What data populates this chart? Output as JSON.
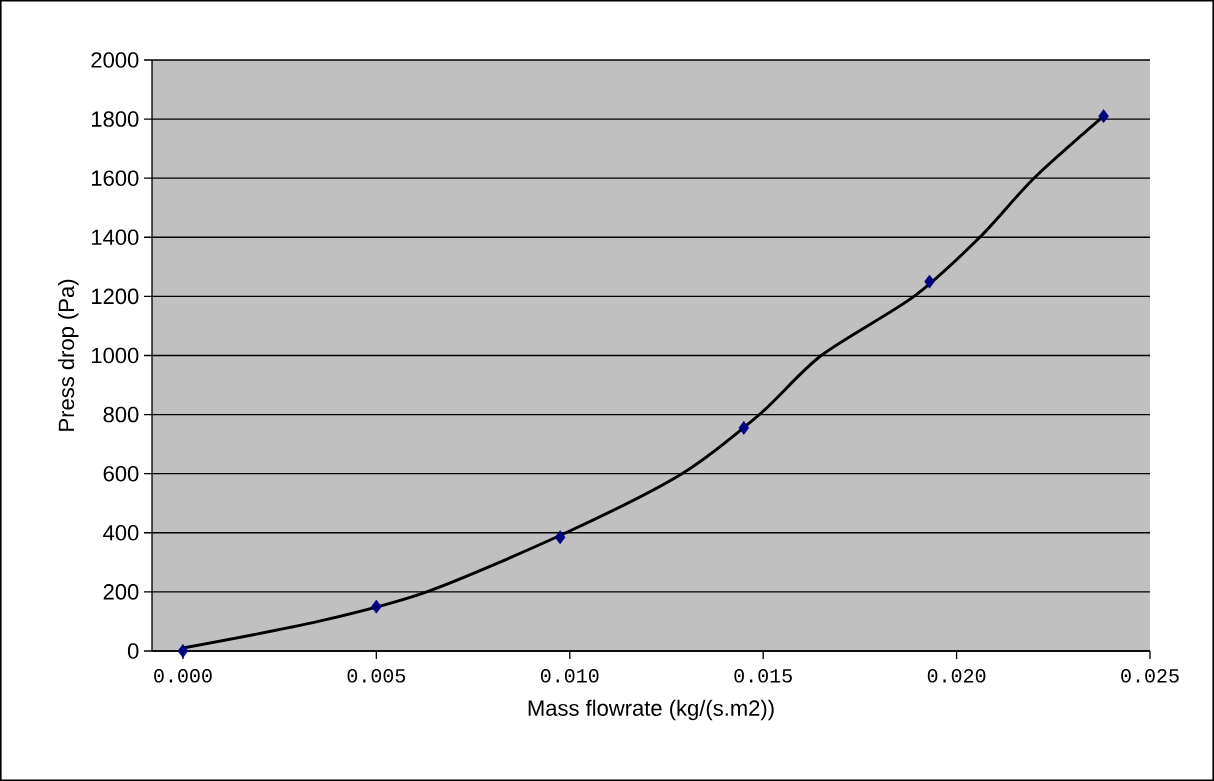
{
  "chart_data": {
    "type": "scatter",
    "xlabel": "Mass flowrate (kg/(s.m2))",
    "ylabel": "Press drop (Pa)",
    "xlim": [
      -0.0008,
      0.025
    ],
    "ylim": [
      0,
      2000
    ],
    "xticks": [
      {
        "value": 0,
        "label": "0.000"
      },
      {
        "value": 0.005,
        "label": "0.005"
      },
      {
        "value": 0.01,
        "label": "0.010"
      },
      {
        "value": 0.015,
        "label": "0.015"
      },
      {
        "value": 0.02,
        "label": "0.020"
      },
      {
        "value": 0.025,
        "label": "0.025"
      }
    ],
    "yticks": [
      0,
      200,
      400,
      600,
      800,
      1000,
      1200,
      1400,
      1600,
      1800,
      2000
    ],
    "grid": "y",
    "series": [
      {
        "type": "scatter",
        "color": "#000080",
        "marker": "diamond",
        "x": [
          0,
          0.005,
          0.00975,
          0.0145,
          0.0193,
          0.0238
        ],
        "values": [
          0,
          150,
          385,
          755,
          1250,
          1810
        ]
      },
      {
        "type": "line",
        "color": "#000000",
        "marker": "none",
        "line_style": "solid",
        "x": [
          0,
          0.0035,
          0.0063,
          0.0099,
          0.0129,
          0.0149,
          0.0165,
          0.0189,
          0.0206,
          0.022,
          0.0238
        ],
        "values": [
          10,
          100,
          200,
          400,
          600,
          800,
          1000,
          1200,
          1400,
          1600,
          1810
        ]
      }
    ]
  }
}
